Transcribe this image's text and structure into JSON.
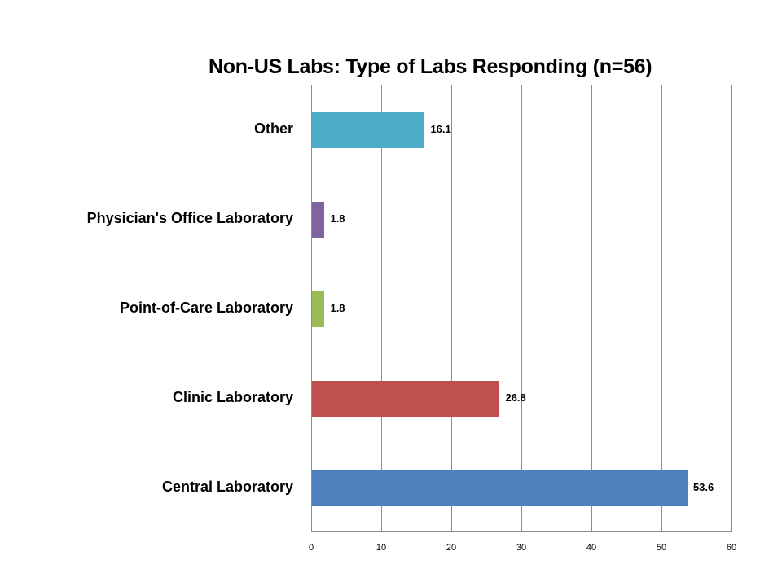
{
  "chart_data": {
    "type": "bar",
    "orientation": "horizontal",
    "title": "Non-US Labs: Type of Labs Responding  (n=56)",
    "xlabel": "",
    "ylabel": "",
    "xlim": [
      0,
      60
    ],
    "x_ticks": [
      "0",
      "10",
      "20",
      "30",
      "40",
      "50",
      "60"
    ],
    "grid": true,
    "legend": null,
    "categories": [
      "Other",
      "Physician's Office Laboratory",
      "Point-of-Care Laboratory",
      "Clinic Laboratory",
      "Central Laboratory"
    ],
    "values": [
      16.1,
      1.8,
      1.8,
      26.8,
      53.6
    ],
    "value_labels": [
      "16.1",
      "1.8",
      "1.8",
      "26.8",
      "53.6"
    ],
    "colors": [
      "#4bacc6",
      "#8064a2",
      "#9bbb59",
      "#c0504d",
      "#4f81bd"
    ]
  }
}
